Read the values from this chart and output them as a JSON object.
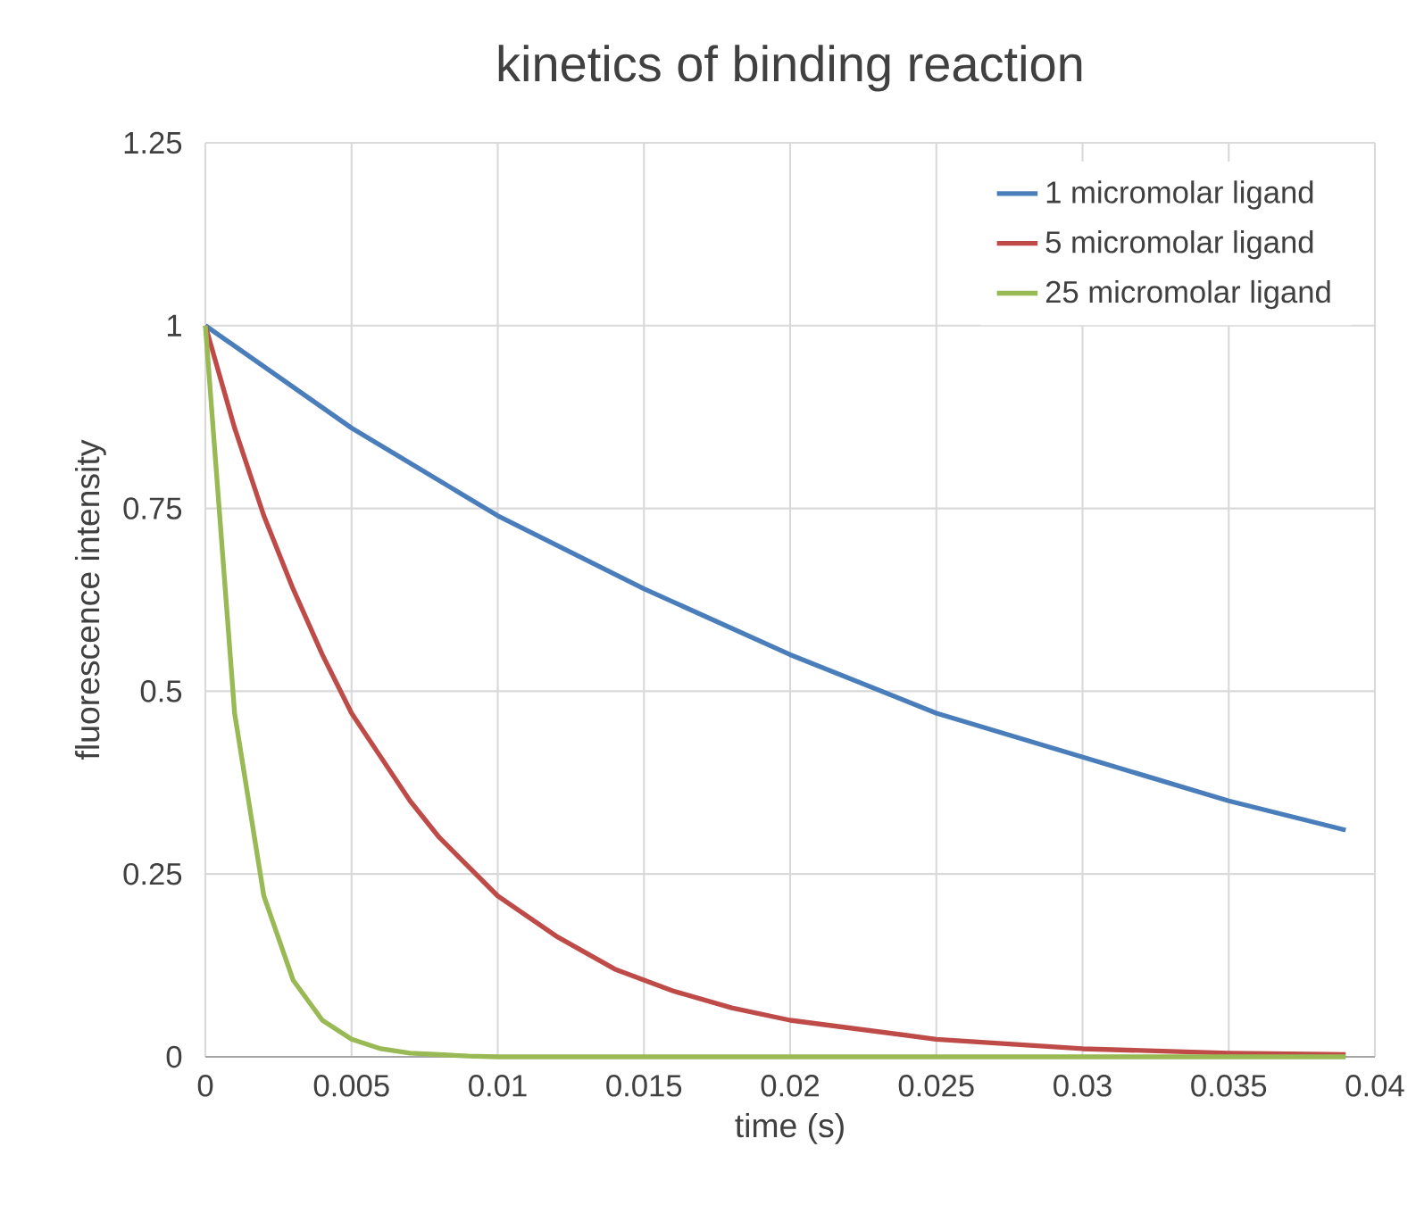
{
  "chart_data": {
    "type": "line",
    "title": "kinetics of binding reaction",
    "xlabel": "time (s)",
    "ylabel": "fluorescence intensity",
    "xlim": [
      0,
      0.04
    ],
    "xticks": [
      0,
      0.005,
      0.01,
      0.015,
      0.02,
      0.025,
      0.03,
      0.035,
      0.04
    ],
    "ylim": [
      0,
      1.25
    ],
    "yticks": [
      0,
      0.25,
      0.5,
      0.75,
      1,
      1.25
    ],
    "grid": true,
    "legend": "top right",
    "marker": "none",
    "line_style": "solid",
    "series": [
      {
        "name": "1 micromolar ligand",
        "color": "#4a7ebb",
        "x": [
          0,
          0.005,
          0.01,
          0.015,
          0.02,
          0.025,
          0.03,
          0.035,
          0.039
        ],
        "values": [
          1,
          0.86,
          0.74,
          0.64,
          0.55,
          0.47,
          0.41,
          0.35,
          0.31
        ]
      },
      {
        "name": "5 micromolar ligand",
        "color": "#be4b48",
        "x": [
          0,
          0.001,
          0.002,
          0.003,
          0.004,
          0.005,
          0.006,
          0.007,
          0.008,
          0.009,
          0.01,
          0.012,
          0.014,
          0.016,
          0.018,
          0.02,
          0.025,
          0.03,
          0.035,
          0.039
        ],
        "values": [
          1,
          0.86,
          0.74,
          0.64,
          0.55,
          0.47,
          0.41,
          0.35,
          0.3,
          0.26,
          0.22,
          0.165,
          0.12,
          0.09,
          0.067,
          0.05,
          0.024,
          0.011,
          0.005,
          0.003
        ]
      },
      {
        "name": "25 micromolar ligand",
        "color": "#98b954",
        "x": [
          0,
          0.001,
          0.002,
          0.003,
          0.004,
          0.005,
          0.006,
          0.007,
          0.008,
          0.009,
          0.01,
          0.02,
          0.03,
          0.039
        ],
        "values": [
          1,
          0.47,
          0.22,
          0.105,
          0.05,
          0.024,
          0.011,
          0.005,
          0.003,
          0.001,
          0,
          0,
          0,
          0
        ]
      }
    ]
  }
}
